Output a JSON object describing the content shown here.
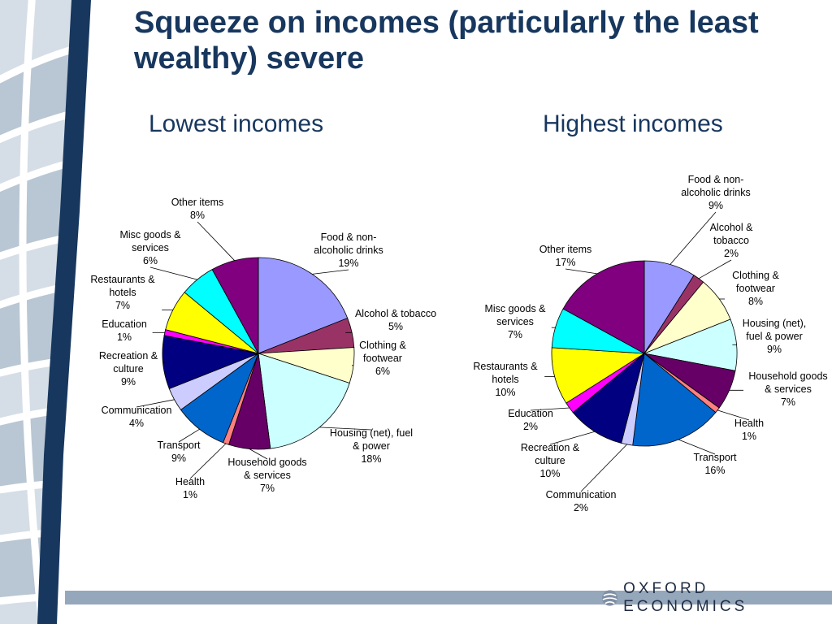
{
  "slide": {
    "title": "Squeeze on incomes (particularly the least wealthy) severe",
    "brand": "OXFORD ECONOMICS"
  },
  "chart_data": [
    {
      "type": "pie",
      "title": "Lowest incomes",
      "unit": "%",
      "slices": [
        {
          "label": "Food & non-alcoholic drinks",
          "value": 19,
          "color": "#9999ff"
        },
        {
          "label": "Alcohol & tobacco",
          "value": 5,
          "color": "#993366"
        },
        {
          "label": "Clothing & footwear",
          "value": 6,
          "color": "#ffffcc"
        },
        {
          "label": "Housing (net), fuel & power",
          "value": 18,
          "color": "#ccffff"
        },
        {
          "label": "Household goods & services",
          "value": 7,
          "color": "#660066"
        },
        {
          "label": "Health",
          "value": 1,
          "color": "#ff8080"
        },
        {
          "label": "Transport",
          "value": 9,
          "color": "#0066cc"
        },
        {
          "label": "Communication",
          "value": 4,
          "color": "#ccccff"
        },
        {
          "label": "Recreation & culture",
          "value": 9,
          "color": "#000080"
        },
        {
          "label": "Education",
          "value": 1,
          "color": "#ff00ff"
        },
        {
          "label": "Restaurants & hotels",
          "value": 7,
          "color": "#ffff00"
        },
        {
          "label": "Misc goods & services",
          "value": 6,
          "color": "#00ffff"
        },
        {
          "label": "Other items",
          "value": 8,
          "color": "#800080"
        }
      ]
    },
    {
      "type": "pie",
      "title": "Highest incomes",
      "unit": "%",
      "slices": [
        {
          "label": "Food & non-alcoholic drinks",
          "value": 9,
          "color": "#9999ff"
        },
        {
          "label": "Alcohol & tobacco",
          "value": 2,
          "color": "#993366"
        },
        {
          "label": "Clothing & footwear",
          "value": 8,
          "color": "#ffffcc"
        },
        {
          "label": "Housing (net), fuel & power",
          "value": 9,
          "color": "#ccffff"
        },
        {
          "label": "Household goods & services",
          "value": 7,
          "color": "#660066"
        },
        {
          "label": "Health",
          "value": 1,
          "color": "#ff8080"
        },
        {
          "label": "Transport",
          "value": 16,
          "color": "#0066cc"
        },
        {
          "label": "Communication",
          "value": 2,
          "color": "#ccccff"
        },
        {
          "label": "Recreation & culture",
          "value": 10,
          "color": "#000080"
        },
        {
          "label": "Education",
          "value": 2,
          "color": "#ff00ff"
        },
        {
          "label": "Restaurants & hotels",
          "value": 10,
          "color": "#ffff00"
        },
        {
          "label": "Misc goods & services",
          "value": 7,
          "color": "#00ffff"
        },
        {
          "label": "Other items",
          "value": 17,
          "color": "#800080"
        }
      ]
    }
  ]
}
